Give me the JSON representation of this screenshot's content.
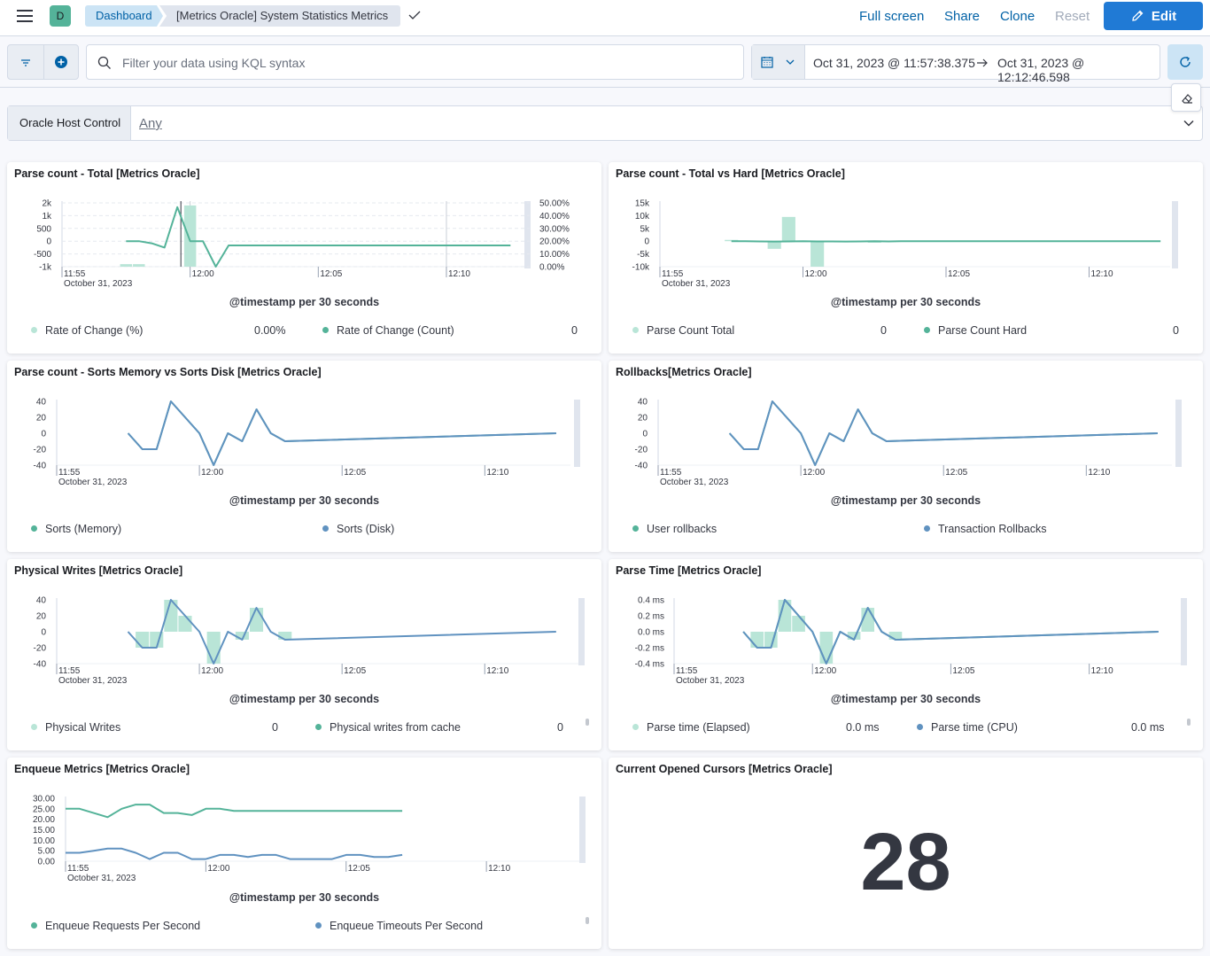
{
  "topbar": {
    "avatar_letter": "D",
    "breadcrumb_root": "Dashboard",
    "breadcrumb_current": "[Metrics Oracle] System Statistics Metrics",
    "full_screen": "Full screen",
    "share": "Share",
    "clone": "Clone",
    "reset": "Reset",
    "edit": "Edit"
  },
  "filterbar": {
    "kql_placeholder": "Filter your data using KQL syntax",
    "date_start": "Oct 31, 2023 @ 11:57:38.375",
    "date_end": "Oct 31, 2023 @ 12:12:46.598"
  },
  "control": {
    "label": "Oracle Host Control",
    "value": "Any"
  },
  "colors": {
    "green": "#54b399",
    "blue": "#6092c0",
    "bar_green": "#b9e5d7",
    "primary": "#207ad5"
  },
  "time_axis": {
    "ticks": [
      "11:55",
      "12:00",
      "12:05",
      "12:10"
    ],
    "date_label": "October 31, 2023",
    "title": "@timestamp per 30 seconds"
  },
  "panels": {
    "p1": {
      "title": "Parse count - Total [Metrics Oracle]",
      "yleft_ticks": [
        "2k",
        "1k",
        "500",
        "0",
        "-500",
        "-1k"
      ],
      "yright_ticks": [
        "50.00%",
        "40.00%",
        "30.00%",
        "20.00%",
        "10.00%",
        "0.00%"
      ],
      "legend": [
        {
          "name": "Rate of Change (%)",
          "value": "0.00%",
          "color": "#b9e5d7"
        },
        {
          "name": "Rate of Change (Count)",
          "value": "0",
          "color": "#54b399"
        }
      ]
    },
    "p2": {
      "title": "Parse count - Total vs Hard [Metrics Oracle]",
      "y_ticks": [
        "15k",
        "10k",
        "5k",
        "0",
        "-5k",
        "-10k"
      ],
      "legend": [
        {
          "name": "Parse Count Total",
          "value": "0",
          "color": "#b9e5d7"
        },
        {
          "name": "Parse Count Hard",
          "value": "0",
          "color": "#54b399"
        }
      ]
    },
    "p3": {
      "title": "Parse count - Sorts Memory vs Sorts Disk [Metrics Oracle]",
      "y_ticks": [
        "40",
        "20",
        "0",
        "-20",
        "-40"
      ],
      "legend": [
        {
          "name": "Sorts (Memory)",
          "color": "#54b399"
        },
        {
          "name": "Sorts (Disk)",
          "color": "#6092c0"
        }
      ]
    },
    "p4": {
      "title": "Rollbacks[Metrics Oracle]",
      "y_ticks": [
        "40",
        "20",
        "0",
        "-20",
        "-40"
      ],
      "legend": [
        {
          "name": "User rollbacks",
          "color": "#54b399"
        },
        {
          "name": "Transaction Rollbacks",
          "color": "#6092c0"
        }
      ]
    },
    "p5": {
      "title": "Physical Writes [Metrics Oracle]",
      "y_ticks": [
        "40",
        "20",
        "0",
        "-20",
        "-40"
      ],
      "legend": [
        {
          "name": "Physical Writes",
          "value": "0",
          "color": "#b9e5d7"
        },
        {
          "name": "Physical writes from cache",
          "value": "0",
          "color": "#54b399"
        }
      ]
    },
    "p6": {
      "title": "Parse Time [Metrics Oracle]",
      "y_ticks": [
        "0.4 ms",
        "0.2 ms",
        "0.0 ms",
        "-0.2 ms",
        "-0.4 ms"
      ],
      "legend": [
        {
          "name": "Parse time (Elapsed)",
          "value": "0.0 ms",
          "color": "#b9e5d7"
        },
        {
          "name": "Parse time (CPU)",
          "value": "0.0 ms",
          "color": "#6092c0"
        }
      ]
    },
    "p7": {
      "title": "Enqueue Metrics [Metrics Oracle]",
      "y_ticks": [
        "30.00",
        "25.00",
        "20.00",
        "15.00",
        "10.00",
        "5.00",
        "0.00"
      ],
      "legend": [
        {
          "name": "Enqueue Requests Per Second",
          "color": "#54b399"
        },
        {
          "name": "Enqueue Timeouts Per Second",
          "color": "#6092c0"
        }
      ]
    },
    "p8": {
      "title": "Current Opened Cursors [Metrics Oracle]",
      "metric": "28"
    }
  },
  "chart_data": [
    {
      "type": "line",
      "title": "Parse count - Total [Metrics Oracle]",
      "xlabel": "@timestamp per 30 seconds",
      "x": [
        "11:57:30",
        "11:58:00",
        "11:58:30",
        "11:59:00",
        "11:59:30",
        "12:00:00",
        "12:00:30",
        "12:01:00",
        "12:01:30",
        "12:02:00",
        "12:02:30",
        "12:03:00",
        "12:03:30",
        "12:04:00",
        "12:12:30"
      ],
      "series": [
        {
          "name": "Rate of Change (%)",
          "type": "bar",
          "values": [
            2,
            2,
            0,
            0,
            0,
            48,
            0,
            0,
            0,
            0,
            0,
            0,
            0,
            0,
            0
          ]
        },
        {
          "name": "Rate of Change (Count)",
          "values": [
            200,
            200,
            100,
            -100,
            1800,
            200,
            200,
            -1000,
            0,
            0,
            0,
            0,
            0,
            0,
            0
          ]
        }
      ]
    },
    {
      "type": "line",
      "title": "Parse count - Total vs Hard [Metrics Oracle]",
      "xlabel": "@timestamp per 30 seconds",
      "x": [
        "11:57:30",
        "11:58:00",
        "11:58:30",
        "11:59:00",
        "11:59:30",
        "12:00:00",
        "12:00:30",
        "12:01:00",
        "12:01:30",
        "12:02:00",
        "12:02:30",
        "12:03:00",
        "12:03:30",
        "12:04:00",
        "12:12:30"
      ],
      "series": [
        {
          "name": "Parse Count Total",
          "type": "bar",
          "values": [
            500,
            0,
            0,
            -3000,
            9500,
            0,
            -10000,
            0,
            0,
            0,
            -600,
            0,
            0,
            0,
            0
          ]
        },
        {
          "name": "Parse Count Hard",
          "values": [
            0,
            -50,
            -100,
            -150,
            -100,
            -50,
            -100,
            -100,
            -150,
            -100,
            -50,
            -100,
            0,
            0,
            0
          ]
        }
      ]
    },
    {
      "type": "line",
      "title": "Parse count - Sorts Memory vs Sorts Disk [Metrics Oracle]",
      "xlabel": "@timestamp per 30 seconds",
      "x": [
        "11:57:30",
        "11:58:00",
        "11:58:30",
        "11:59:00",
        "11:59:30",
        "12:00:00",
        "12:00:30",
        "12:01:00",
        "12:01:30",
        "12:02:00",
        "12:02:30",
        "12:03:00",
        "12:12:30"
      ],
      "series": [
        {
          "name": "Sorts (Memory)",
          "values": [
            0,
            -20,
            -20,
            40,
            20,
            0,
            -40,
            0,
            -10,
            30,
            0,
            -10,
            0
          ]
        },
        {
          "name": "Sorts (Disk)",
          "values": [
            0,
            -20,
            -20,
            40,
            20,
            0,
            -40,
            0,
            -10,
            30,
            0,
            -10,
            0
          ]
        }
      ]
    },
    {
      "type": "line",
      "title": "Rollbacks[Metrics Oracle]",
      "xlabel": "@timestamp per 30 seconds",
      "x": [
        "11:57:30",
        "11:58:00",
        "11:58:30",
        "11:59:00",
        "11:59:30",
        "12:00:00",
        "12:00:30",
        "12:01:00",
        "12:01:30",
        "12:02:00",
        "12:02:30",
        "12:03:00",
        "12:12:30"
      ],
      "series": [
        {
          "name": "User rollbacks",
          "values": [
            0,
            -20,
            -20,
            40,
            20,
            0,
            -40,
            0,
            -10,
            30,
            0,
            -10,
            0
          ]
        },
        {
          "name": "Transaction Rollbacks",
          "values": [
            0,
            -20,
            -20,
            40,
            20,
            0,
            -40,
            0,
            -10,
            30,
            0,
            -10,
            0
          ]
        }
      ]
    },
    {
      "type": "line",
      "title": "Physical Writes [Metrics Oracle]",
      "xlabel": "@timestamp per 30 seconds",
      "x": [
        "11:57:30",
        "11:58:00",
        "11:58:30",
        "11:59:00",
        "11:59:30",
        "12:00:00",
        "12:00:30",
        "12:01:00",
        "12:01:30",
        "12:02:00",
        "12:02:30",
        "12:03:00",
        "12:12:30"
      ],
      "series": [
        {
          "name": "Physical Writes",
          "type": "bar",
          "values": [
            0,
            -20,
            -20,
            40,
            20,
            0,
            -40,
            0,
            -10,
            30,
            0,
            -10,
            0
          ]
        },
        {
          "name": "Physical writes from cache",
          "values": [
            0,
            -20,
            -20,
            40,
            20,
            0,
            -40,
            0,
            -10,
            30,
            0,
            -10,
            0
          ]
        }
      ]
    },
    {
      "type": "line",
      "title": "Parse Time [Metrics Oracle]",
      "xlabel": "@timestamp per 30 seconds",
      "x": [
        "11:57:30",
        "11:58:00",
        "11:58:30",
        "11:59:00",
        "11:59:30",
        "12:00:00",
        "12:00:30",
        "12:01:00",
        "12:01:30",
        "12:02:00",
        "12:02:30",
        "12:03:00",
        "12:12:30"
      ],
      "series": [
        {
          "name": "Parse time (Elapsed)",
          "type": "bar",
          "values": [
            0,
            -0.2,
            -0.2,
            0.4,
            0.2,
            0,
            -0.4,
            0,
            -0.1,
            0.3,
            0,
            -0.1,
            0
          ]
        },
        {
          "name": "Parse time (CPU)",
          "values": [
            0,
            -0.2,
            -0.2,
            0.4,
            0.2,
            0,
            -0.4,
            0,
            -0.1,
            0.3,
            0,
            -0.1,
            0
          ]
        }
      ]
    },
    {
      "type": "line",
      "title": "Enqueue Metrics [Metrics Oracle]",
      "xlabel": "@timestamp per 30 seconds",
      "x": [
        "11:55:00",
        "11:55:30",
        "11:56:00",
        "11:56:30",
        "11:57:00",
        "11:57:30",
        "11:58:00",
        "11:58:30",
        "11:59:00",
        "11:59:30",
        "12:00:00",
        "12:00:30",
        "12:01:00",
        "12:01:30",
        "12:02:00",
        "12:02:30",
        "12:03:00",
        "12:03:30",
        "12:04:00",
        "12:04:30",
        "12:05:00",
        "12:05:30",
        "12:06:00",
        "12:06:30",
        "12:07:00"
      ],
      "series": [
        {
          "name": "Enqueue Requests Per Second",
          "values": [
            25,
            25,
            23,
            21,
            25,
            27,
            27,
            23,
            23,
            22,
            25,
            25,
            24,
            24,
            24,
            24,
            24,
            24,
            24,
            24,
            24,
            24,
            24,
            24,
            24
          ]
        },
        {
          "name": "Enqueue Timeouts Per Second",
          "values": [
            4,
            4,
            5,
            6,
            6,
            4,
            1,
            4,
            4,
            1,
            1,
            3,
            3,
            2,
            3,
            3,
            1,
            1,
            1,
            1,
            3,
            3,
            2,
            2,
            3
          ]
        }
      ]
    }
  ]
}
